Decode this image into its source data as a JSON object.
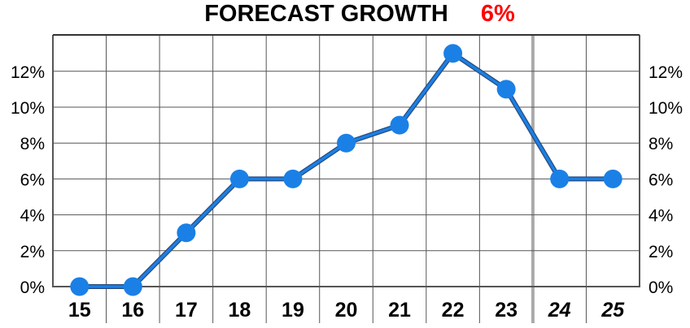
{
  "header": {
    "title": "FORECAST GROWTH",
    "headline_value": "6%",
    "headline_color": "#ff0000"
  },
  "chart_data": {
    "type": "line",
    "title": "FORECAST GROWTH",
    "x": [
      "15",
      "16",
      "17",
      "18",
      "19",
      "20",
      "21",
      "22",
      "23",
      "24",
      "25"
    ],
    "forecast_from": "24",
    "series": [
      {
        "values": [
          0,
          0,
          3,
          6,
          6,
          8,
          9,
          13,
          11,
          6,
          6
        ],
        "color": "#1a80e6"
      }
    ],
    "ylim": [
      0,
      14
    ],
    "yticks": [
      0,
      2,
      4,
      6,
      8,
      10,
      12
    ],
    "ytick_labels": [
      "0%",
      "2%",
      "4%",
      "6%",
      "8%",
      "10%",
      "12%"
    ],
    "y_axis_both_sides": true,
    "grid": true,
    "legend": "none"
  }
}
